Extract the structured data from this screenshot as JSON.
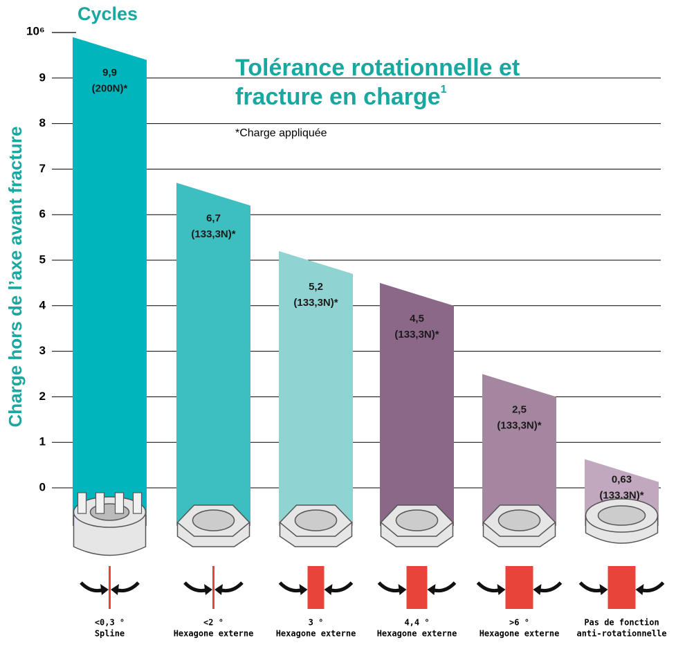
{
  "chart_data": {
    "type": "bar",
    "title_lines": [
      "Tolérance rotationnelle et",
      "fracture en charge"
    ],
    "title_note": "1",
    "subtitle": "*Charge appliquée",
    "y_label": "Charge hors de l’axe avant fracture",
    "y_unit_title": "Cycles",
    "y_unit": "10⁶",
    "categories": [
      "<0,3 °",
      "<2 °",
      "3 °",
      "4,4 °",
      ">6 °",
      "Pas de fonction"
    ],
    "descriptions": [
      "Spline",
      "Hexagone externe",
      "Hexagone externe",
      "Hexagone externe",
      "Hexagone externe",
      "anti-rotationnelle"
    ],
    "values": [
      9.9,
      6.7,
      5.2,
      4.5,
      2.5,
      0.63
    ],
    "value_labels": [
      "9,9",
      "6,7",
      "5,2",
      "4,5",
      "2,5",
      "0,63"
    ],
    "loads": [
      "(200N)*",
      "(133,3N)*",
      "(133,3N)*",
      "(133,3N)*",
      "(133,3N)*",
      "(133,3N)*"
    ],
    "colors": [
      "#00b5bb",
      "#3dbfc0",
      "#8fd3d2",
      "#8b6888",
      "#a486a0",
      "#c1a8be"
    ],
    "ylim": [
      0,
      10
    ],
    "yticks": [
      0,
      1,
      2,
      3,
      4,
      5,
      6,
      7,
      8,
      9
    ],
    "grid": true
  }
}
